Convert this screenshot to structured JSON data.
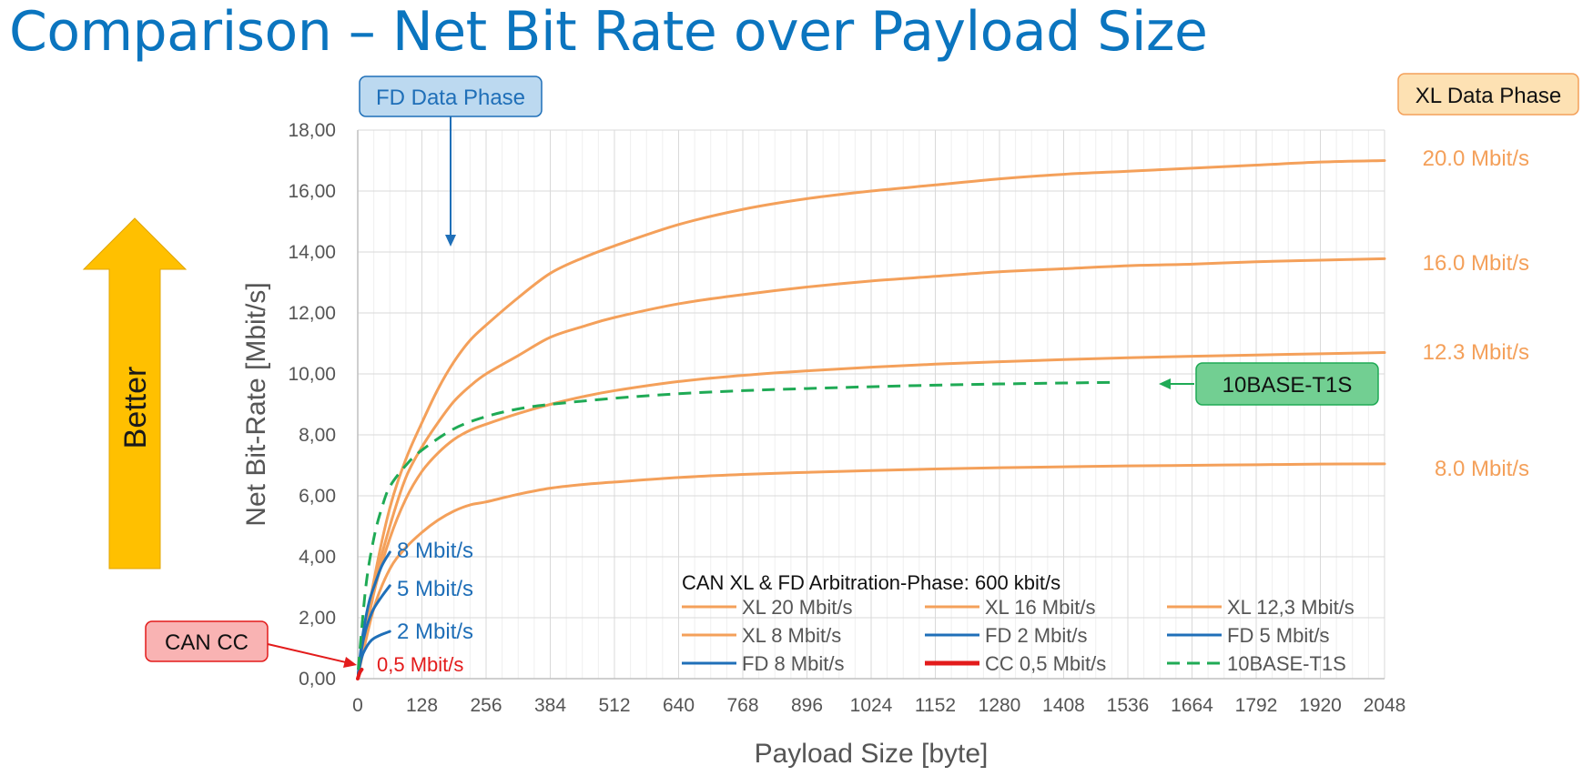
{
  "page": {
    "title": "Comparison – Net Bit Rate over Payload Size"
  },
  "colors": {
    "xl": "#f4a05a",
    "fd": "#1f6fb8",
    "cc": "#e31b1b",
    "t1s": "#1faa55",
    "title": "#0b75bf",
    "better": "#ffc000"
  },
  "annotations": {
    "fd_data_phase": "FD Data Phase",
    "xl_data_phase": "XL Data Phase",
    "ten_base_t1s": "10BASE-T1S",
    "can_cc": "CAN CC",
    "better": "Better"
  },
  "chart_data": {
    "type": "line",
    "title": "Comparison – Net Bit Rate over Payload Size",
    "xlabel": "Payload Size [byte]",
    "ylabel": "Net Bit-Rate [Mbit/s]",
    "xlim": [
      0,
      2048
    ],
    "ylim": [
      0,
      18
    ],
    "x_ticks": [
      0,
      128,
      256,
      384,
      512,
      640,
      768,
      896,
      1024,
      1152,
      1280,
      1408,
      1536,
      1664,
      1792,
      1920,
      2048
    ],
    "y_ticks": [
      "0,00",
      "2,00",
      "4,00",
      "6,00",
      "8,00",
      "10,00",
      "12,00",
      "14,00",
      "16,00",
      "18,00"
    ],
    "y_tick_values": [
      0,
      2,
      4,
      6,
      8,
      10,
      12,
      14,
      16,
      18
    ],
    "grid": true,
    "legend_title": "CAN XL & FD Arbitration-Phase: 600 kbit/s",
    "series": [
      {
        "name": "XL 20 Mbit/s",
        "end_label": "20.0 Mbit/s",
        "color": "#f4a05a",
        "style": "solid",
        "x": [
          1,
          32,
          64,
          96,
          128,
          160,
          192,
          224,
          256,
          320,
          384,
          448,
          512,
          640,
          768,
          896,
          1024,
          1152,
          1280,
          1408,
          1536,
          1664,
          1792,
          1920,
          2048
        ],
        "y": [
          0.15,
          3.2,
          5.6,
          7.2,
          8.4,
          9.5,
          10.4,
          11.1,
          11.6,
          12.5,
          13.3,
          13.8,
          14.2,
          14.9,
          15.4,
          15.75,
          16.0,
          16.2,
          16.4,
          16.55,
          16.65,
          16.75,
          16.85,
          16.95,
          17.0
        ]
      },
      {
        "name": "XL 16 Mbit/s",
        "end_label": "16.0 Mbit/s",
        "color": "#f4a05a",
        "style": "solid",
        "x": [
          1,
          32,
          64,
          96,
          128,
          160,
          192,
          224,
          256,
          320,
          384,
          448,
          512,
          640,
          768,
          896,
          1024,
          1152,
          1280,
          1408,
          1536,
          1664,
          1792,
          1920,
          2048
        ],
        "y": [
          0.15,
          3.0,
          5.0,
          6.6,
          7.6,
          8.4,
          9.1,
          9.6,
          10.0,
          10.6,
          11.2,
          11.55,
          11.85,
          12.3,
          12.6,
          12.85,
          13.05,
          13.2,
          13.35,
          13.45,
          13.55,
          13.6,
          13.68,
          13.73,
          13.78
        ]
      },
      {
        "name": "XL 12,3 Mbit/s",
        "end_label": "12.3 Mbit/s",
        "color": "#f4a05a",
        "style": "solid",
        "x": [
          1,
          32,
          64,
          96,
          128,
          160,
          192,
          224,
          256,
          320,
          384,
          448,
          512,
          640,
          768,
          896,
          1024,
          1152,
          1280,
          1408,
          1536,
          1664,
          1792,
          1920,
          2048
        ],
        "y": [
          0.15,
          2.8,
          4.6,
          5.9,
          6.8,
          7.4,
          7.85,
          8.15,
          8.35,
          8.7,
          9.0,
          9.25,
          9.45,
          9.75,
          9.95,
          10.1,
          10.22,
          10.32,
          10.4,
          10.47,
          10.53,
          10.58,
          10.62,
          10.66,
          10.7
        ]
      },
      {
        "name": "XL 8 Mbit/s",
        "end_label": "8.0 Mbit/s",
        "color": "#f4a05a",
        "style": "solid",
        "x": [
          1,
          32,
          64,
          96,
          128,
          160,
          192,
          224,
          256,
          320,
          384,
          448,
          512,
          640,
          768,
          896,
          1024,
          1152,
          1280,
          1408,
          1536,
          1664,
          1792,
          1920,
          2048
        ],
        "y": [
          0.15,
          2.3,
          3.6,
          4.3,
          4.8,
          5.2,
          5.5,
          5.7,
          5.8,
          6.05,
          6.25,
          6.37,
          6.45,
          6.6,
          6.7,
          6.77,
          6.83,
          6.88,
          6.92,
          6.95,
          6.98,
          7.0,
          7.02,
          7.04,
          7.05
        ]
      },
      {
        "name": "FD 2 Mbit/s",
        "end_label": "2 Mbit/s",
        "color": "#1f6fb8",
        "style": "solid",
        "x": [
          1,
          8,
          16,
          24,
          32,
          48,
          64
        ],
        "y": [
          0.15,
          0.7,
          1.0,
          1.2,
          1.32,
          1.45,
          1.55
        ]
      },
      {
        "name": "FD 5 Mbit/s",
        "end_label": "5 Mbit/s",
        "color": "#1f6fb8",
        "style": "solid",
        "x": [
          1,
          8,
          16,
          24,
          32,
          48,
          64
        ],
        "y": [
          0.15,
          1.0,
          1.6,
          2.0,
          2.3,
          2.7,
          3.05
        ]
      },
      {
        "name": "FD 8 Mbit/s",
        "end_label": "8 Mbit/s",
        "color": "#1f6fb8",
        "style": "solid",
        "x": [
          1,
          8,
          16,
          24,
          32,
          48,
          64
        ],
        "y": [
          0.15,
          1.2,
          2.0,
          2.6,
          3.0,
          3.7,
          4.15
        ]
      },
      {
        "name": "CC 0,5 Mbit/s",
        "end_label": "0,5 Mbit/s",
        "color": "#e31b1b",
        "style": "solid",
        "x": [
          0,
          4,
          8
        ],
        "y": [
          0.0,
          0.2,
          0.3
        ]
      },
      {
        "name": "10BASE-T1S",
        "color": "#1faa55",
        "style": "dashed",
        "x": [
          1,
          16,
          32,
          48,
          64,
          96,
          128,
          192,
          256,
          320,
          384,
          512,
          640,
          768,
          896,
          1024,
          1152,
          1280,
          1408,
          1500
        ],
        "y": [
          0.3,
          3.0,
          4.6,
          5.6,
          6.3,
          7.0,
          7.5,
          8.2,
          8.6,
          8.85,
          9.0,
          9.2,
          9.35,
          9.45,
          9.52,
          9.58,
          9.63,
          9.67,
          9.7,
          9.72
        ]
      }
    ]
  }
}
